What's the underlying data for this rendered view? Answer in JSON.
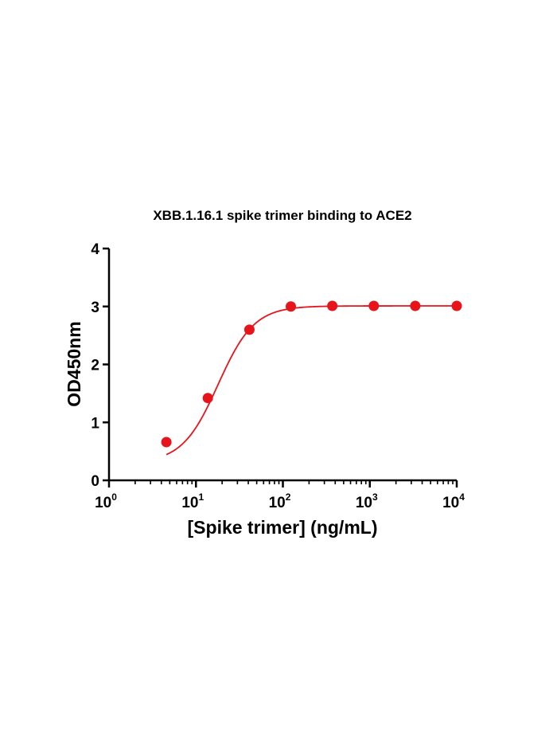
{
  "chart_data": {
    "type": "scatter",
    "title": "XBB.1.16.1 spike trimer binding to ACE2",
    "xlabel": "[Spike trimer] (ng/mL)",
    "ylabel": "OD450nm",
    "x_scale": "log10",
    "xlim": [
      1,
      10000
    ],
    "ylim": [
      0,
      4
    ],
    "x_ticks": [
      {
        "base": "10",
        "exp": "0"
      },
      {
        "base": "10",
        "exp": "1"
      },
      {
        "base": "10",
        "exp": "2"
      },
      {
        "base": "10",
        "exp": "3"
      },
      {
        "base": "10",
        "exp": "4"
      }
    ],
    "y_ticks": [
      "0",
      "1",
      "2",
      "3",
      "4"
    ],
    "grid": false,
    "series": [
      {
        "color": "#e8141b",
        "points": [
          {
            "x": 4.57,
            "y": 0.66
          },
          {
            "x": 13.7,
            "y": 1.42
          },
          {
            "x": 41.2,
            "y": 2.6
          },
          {
            "x": 123.5,
            "y": 3.0
          },
          {
            "x": 370.4,
            "y": 3.01
          },
          {
            "x": 1111,
            "y": 3.01
          },
          {
            "x": 3333,
            "y": 3.01
          },
          {
            "x": 10000,
            "y": 3.01
          }
        ],
        "fit": {
          "model": "4PL",
          "bottom": 0.3,
          "top": 3.01,
          "ec50": 18,
          "hill": 2.1
        }
      }
    ]
  }
}
